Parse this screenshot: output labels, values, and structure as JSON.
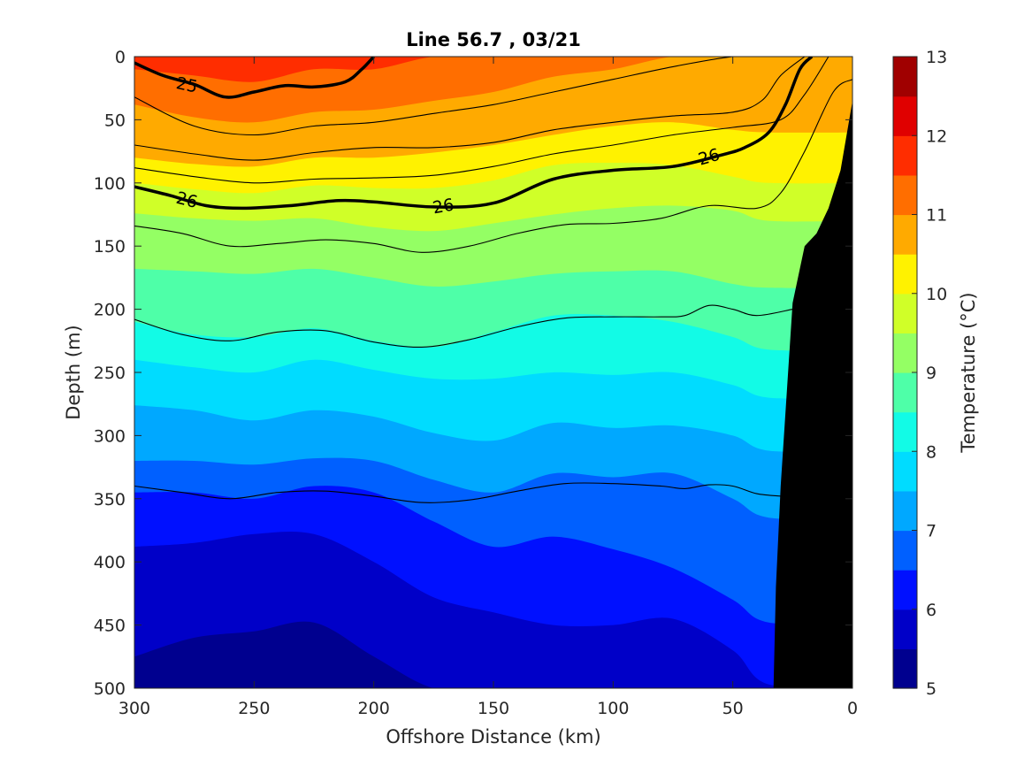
{
  "chart_data": {
    "type": "contour",
    "title": "Line 56.7 , 03/21",
    "xlabel": "Offshore Distance (km)",
    "ylabel": "Depth (m)",
    "colorbar_label": "Temperature (°C)",
    "xlim": [
      300,
      0
    ],
    "ylim": [
      0,
      500
    ],
    "x_ticks": [
      "300",
      "250",
      "200",
      "150",
      "100",
      "50",
      "0"
    ],
    "y_ticks": [
      "0",
      "50",
      "100",
      "150",
      "200",
      "250",
      "300",
      "350",
      "400",
      "450",
      "500"
    ],
    "colorbar_ticks": [
      "5",
      "6",
      "7",
      "8",
      "9",
      "10",
      "11",
      "12",
      "13"
    ],
    "colorbar_range": [
      5,
      13
    ],
    "colormap": [
      "#00008f",
      "#0000c8",
      "#0010ff",
      "#0060ff",
      "#00a8ff",
      "#00dcff",
      "#12fbe6",
      "#4effa8",
      "#94ff64",
      "#d0ff28",
      "#fff200",
      "#ffaa00",
      "#ff6e00",
      "#ff2d00",
      "#e00000",
      "#a00000"
    ],
    "distance_km": [
      300,
      275,
      250,
      225,
      200,
      175,
      150,
      125,
      100,
      75,
      50,
      35
    ],
    "isotherm_depths_m": {
      "5.5": [
        475,
        460,
        455,
        448,
        475,
        500,
        500,
        500,
        500,
        500,
        500,
        500
      ],
      "6.0": [
        388,
        385,
        378,
        378,
        400,
        428,
        440,
        450,
        450,
        445,
        470,
        497
      ],
      "6.5": [
        345,
        345,
        350,
        340,
        345,
        368,
        388,
        380,
        390,
        405,
        430,
        448
      ],
      "7.0": [
        320,
        320,
        323,
        318,
        320,
        335,
        345,
        330,
        333,
        330,
        350,
        365
      ],
      "7.5": [
        276,
        280,
        288,
        280,
        285,
        298,
        304,
        290,
        294,
        292,
        300,
        312
      ],
      "8.0": [
        240,
        246,
        250,
        240,
        248,
        255,
        255,
        250,
        252,
        250,
        260,
        270
      ],
      "8.5": [
        210,
        220,
        222,
        215,
        225,
        230,
        218,
        205,
        205,
        210,
        222,
        232
      ],
      "9.0": [
        168,
        170,
        172,
        168,
        175,
        182,
        178,
        172,
        170,
        170,
        180,
        183
      ],
      "9.5": [
        124,
        128,
        130,
        128,
        135,
        138,
        132,
        125,
        120,
        118,
        122,
        130
      ],
      "10.0": [
        100,
        105,
        108,
        102,
        104,
        104,
        98,
        86,
        84,
        86,
        95,
        100
      ],
      "10.5": [
        80,
        85,
        87,
        80,
        80,
        76,
        70,
        62,
        55,
        52,
        58,
        60
      ],
      "11.0": [
        38,
        48,
        52,
        44,
        42,
        35,
        28,
        16,
        10,
        0,
        0,
        0
      ],
      "11.5": [
        10,
        15,
        20,
        10,
        10,
        0,
        0,
        0,
        0,
        0,
        0,
        0
      ],
      "12.0": [
        0,
        0,
        0,
        0,
        0,
        0,
        0,
        0,
        0,
        0,
        0,
        0
      ]
    },
    "density_contours": [
      {
        "label": "25",
        "bold": true,
        "x": [
          300,
          288,
          275,
          262,
          250,
          237,
          225,
          212,
          205,
          200
        ],
        "y": [
          5,
          15,
          22,
          32,
          28,
          23,
          24,
          20,
          10,
          0
        ]
      },
      {
        "label": "26",
        "bold": true,
        "x": [
          300,
          285,
          270,
          255,
          235,
          215,
          200,
          175,
          150,
          125,
          100,
          75,
          55,
          45,
          35,
          28,
          22,
          17
        ],
        "y": [
          103,
          110,
          118,
          120,
          118,
          114,
          115,
          119,
          116,
          97,
          90,
          87,
          78,
          72,
          60,
          38,
          10,
          0
        ]
      },
      {
        "label": "",
        "bold": false,
        "x": [
          300,
          275,
          250,
          225,
          200,
          175,
          150,
          125,
          100,
          75,
          50,
          35,
          28,
          22
        ],
        "y": [
          32,
          55,
          62,
          55,
          52,
          45,
          38,
          28,
          18,
          8,
          0,
          0,
          0,
          0
        ]
      },
      {
        "label": "",
        "bold": false,
        "x": [
          300,
          275,
          250,
          225,
          200,
          175,
          150,
          125,
          100,
          75,
          50,
          38,
          30,
          20
        ],
        "y": [
          70,
          77,
          82,
          76,
          72,
          72,
          68,
          58,
          52,
          47,
          44,
          35,
          15,
          0
        ]
      },
      {
        "label": "",
        "bold": false,
        "x": [
          300,
          275,
          250,
          225,
          200,
          175,
          150,
          125,
          100,
          75,
          50,
          30,
          20,
          10
        ],
        "y": [
          88,
          95,
          100,
          97,
          96,
          94,
          87,
          77,
          70,
          62,
          56,
          50,
          30,
          0
        ]
      },
      {
        "label": "",
        "bold": false,
        "x": [
          300,
          280,
          260,
          240,
          220,
          200,
          180,
          160,
          140,
          120,
          100,
          80,
          60,
          40,
          30,
          20,
          8,
          0
        ],
        "y": [
          134,
          140,
          150,
          148,
          145,
          148,
          155,
          150,
          140,
          133,
          132,
          128,
          118,
          120,
          108,
          75,
          28,
          18
        ]
      },
      {
        "label": "",
        "bold": false,
        "x": [
          300,
          280,
          260,
          240,
          220,
          200,
          180,
          160,
          140,
          120,
          100,
          80,
          70,
          60,
          50,
          40,
          25
        ],
        "y": [
          208,
          220,
          225,
          218,
          217,
          226,
          230,
          224,
          214,
          207,
          206,
          206,
          205,
          197,
          200,
          205,
          200
        ]
      },
      {
        "label": "",
        "bold": false,
        "x": [
          300,
          280,
          260,
          240,
          220,
          200,
          180,
          160,
          140,
          120,
          100,
          80,
          70,
          60,
          50,
          40,
          30
        ],
        "y": [
          340,
          345,
          350,
          345,
          344,
          348,
          353,
          351,
          344,
          338,
          338,
          340,
          342,
          339,
          340,
          346,
          348
        ]
      }
    ]
  }
}
